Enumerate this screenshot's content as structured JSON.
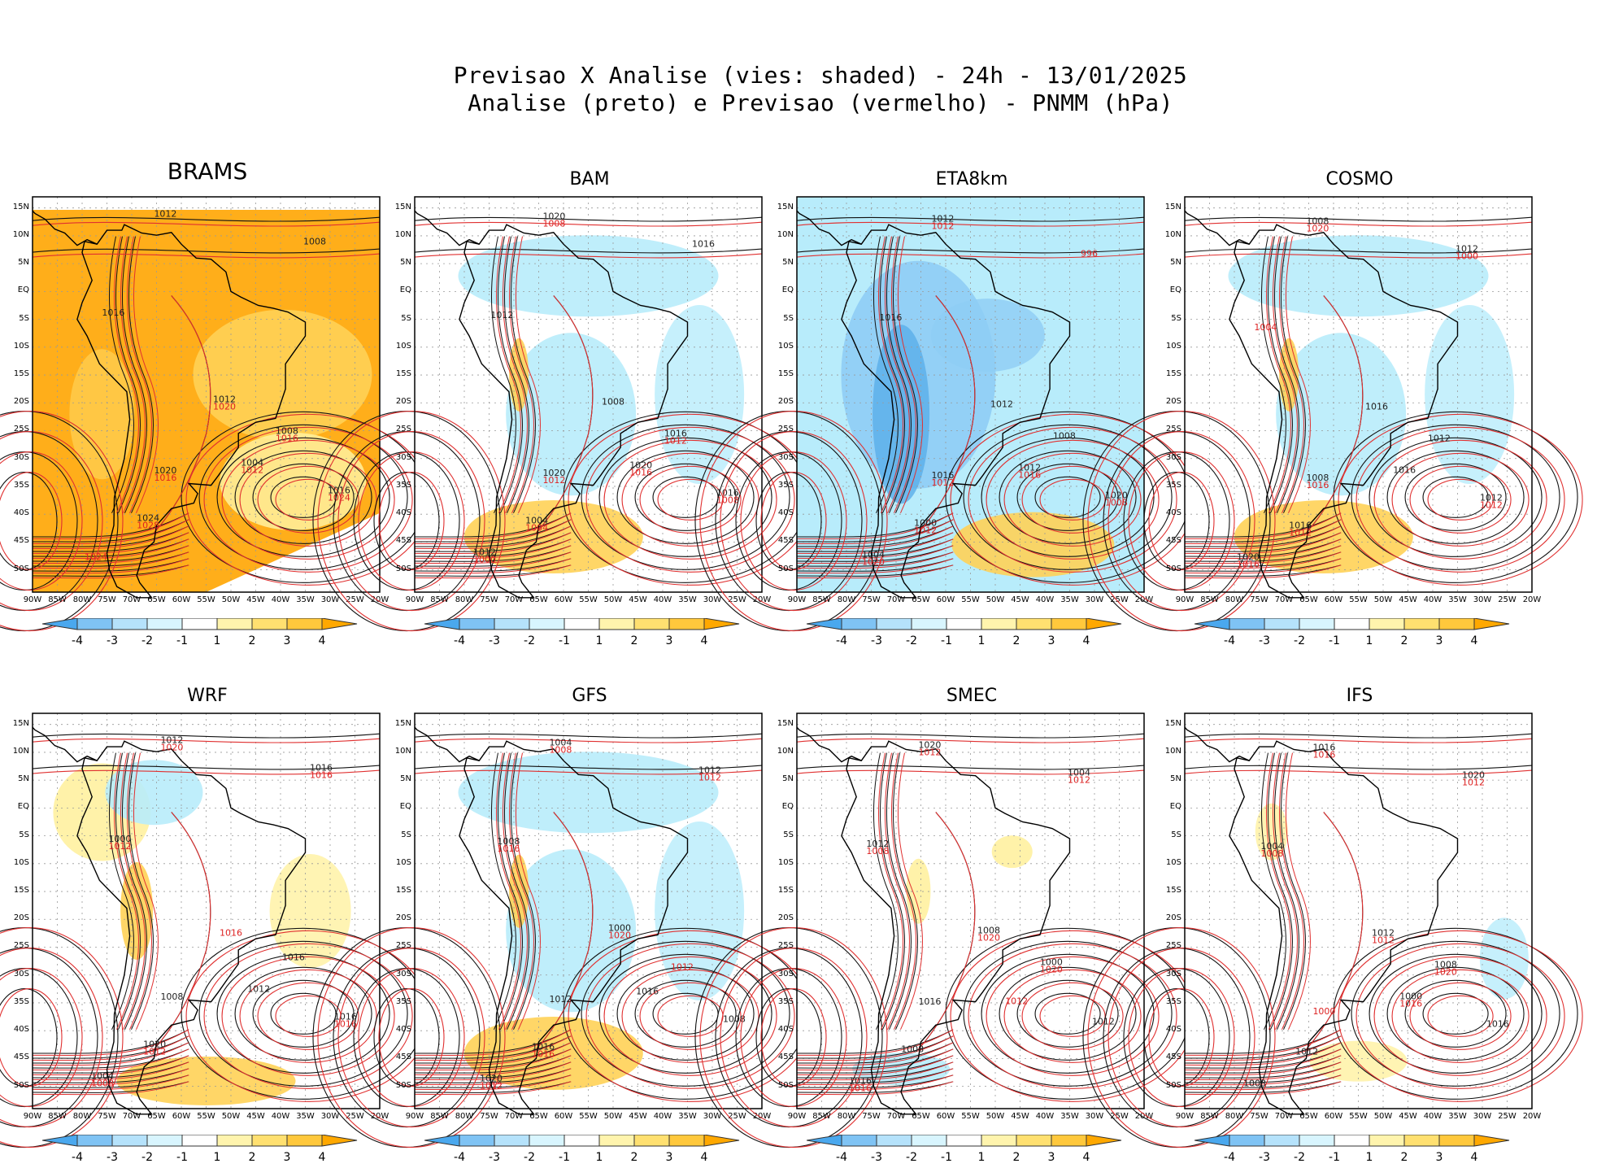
{
  "title": {
    "line1": "Previsao X Analise (vies: shaded) - 24h - 13/01/2025",
    "line2": "Analise (preto) e Previsao (vermelho) - PNMM (hPa)"
  },
  "lat_labels": [
    "15N",
    "10N",
    "5N",
    "EQ",
    "5S",
    "10S",
    "15S",
    "20S",
    "25S",
    "30S",
    "35S",
    "40S",
    "45S",
    "50S"
  ],
  "lon_labels": [
    "90W",
    "85W",
    "80W",
    "75W",
    "70W",
    "65W",
    "60W",
    "55W",
    "50W",
    "45W",
    "40W",
    "35W",
    "30W",
    "25W",
    "20W"
  ],
  "colorbar": {
    "labels": [
      "-4",
      "-3",
      "-2",
      "-1",
      "1",
      "2",
      "3",
      "4"
    ],
    "colors": [
      "#4aa8ee",
      "#7fc3f4",
      "#b5e2fb",
      "#d8f5fe",
      "#ffffff",
      "#fff4ad",
      "#ffe070",
      "#ffc83c",
      "#ffa800"
    ]
  },
  "colors": {
    "analysis_contour": "#111111",
    "forecast_contour": "#e03030",
    "coast": "#000000",
    "neg_light": "#b8ecfb",
    "neg_mid": "#8fcdf5",
    "neg_dark": "#5aaeea",
    "pos_light": "#fff1a0",
    "pos_mid": "#ffd257",
    "pos_dark": "#ffae1a"
  },
  "panels": [
    {
      "name": "BRAMS",
      "bias": "strong-positive",
      "labels_black": [
        "1012",
        "1008",
        "1016",
        "1012",
        "1008",
        "1004",
        "1020",
        "1016",
        "1024"
      ],
      "labels_red": [
        "1020",
        "1016",
        "1012",
        "1016",
        "1024",
        "1028",
        "1024"
      ]
    },
    {
      "name": "BAM",
      "bias": "weak-negative",
      "labels_black": [
        "1016",
        "1012",
        "1008",
        "1016",
        "1020",
        "1020",
        "1016",
        "1004",
        "1012",
        "1020"
      ],
      "labels_red": [
        "1012",
        "1016",
        "1012",
        "1008",
        "1004",
        "1000",
        "1008"
      ]
    },
    {
      "name": "ETA8km",
      "bias": "strong-negative",
      "labels_black": [
        "1016",
        "1012",
        "1008",
        "1012",
        "1016",
        "1020",
        "1000",
        "1004",
        "1012"
      ],
      "labels_red": [
        "1016",
        "1012",
        "1008",
        "1012",
        "1020",
        "1012",
        "996"
      ]
    },
    {
      "name": "COSMO",
      "bias": "weak-negative",
      "labels_black": [
        "1016",
        "1012",
        "1016",
        "1008",
        "1012",
        "1016",
        "1020",
        "1008",
        "1012"
      ],
      "labels_red": [
        "1016",
        "1012",
        "1012",
        "1016",
        "1020",
        "1000",
        "1004"
      ]
    },
    {
      "name": "WRF",
      "bias": "mixed",
      "labels_black": [
        "1016",
        "1012",
        "1008",
        "1016",
        "1020",
        "1004",
        "1012",
        "1016",
        "1000"
      ],
      "labels_red": [
        "1016",
        "1012",
        "1008",
        "1020",
        "1016",
        "1012",
        "1016"
      ]
    },
    {
      "name": "GFS",
      "bias": "weak-negative",
      "labels_black": [
        "1016",
        "1012",
        "1008",
        "1016",
        "1020",
        "1004",
        "1012",
        "1008",
        "1000"
      ],
      "labels_red": [
        "1016",
        "1012",
        "1008",
        "1012",
        "1016",
        "1020",
        "1012"
      ]
    },
    {
      "name": "SMEC",
      "bias": "weak-positive",
      "labels_black": [
        "1016",
        "1012",
        "1008",
        "1016",
        "1020",
        "1004",
        "1012",
        "1008",
        "1000"
      ],
      "labels_red": [
        "1016",
        "1012",
        "1012",
        "1008",
        "1020",
        "1020",
        "1012"
      ]
    },
    {
      "name": "IFS",
      "bias": "weak-mixed",
      "labels_black": [
        "1016",
        "1012",
        "1008",
        "1016",
        "1020",
        "1004",
        "1012",
        "1008",
        "1000"
      ],
      "labels_red": [
        "1016",
        "1012",
        "1008",
        "1012",
        "1020",
        "1016",
        "1000"
      ]
    }
  ]
}
